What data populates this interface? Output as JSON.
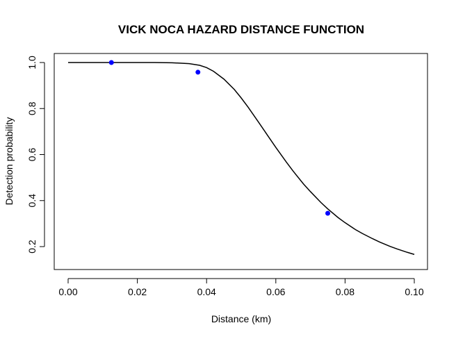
{
  "chart_data": {
    "type": "line",
    "title": "VICK NOCA HAZARD DISTANCE FUNCTION",
    "xlabel": "Distance (km)",
    "ylabel": "Detection probability",
    "xlim": [
      0.0,
      0.1
    ],
    "ylim": [
      0.13,
      1.0
    ],
    "x_ticks": [
      0.0,
      0.02,
      0.04,
      0.06,
      0.08,
      0.1
    ],
    "x_tick_labels": [
      "0.00",
      "0.02",
      "0.04",
      "0.06",
      "0.08",
      "0.10"
    ],
    "y_ticks": [
      0.2,
      0.4,
      0.6,
      0.8,
      1.0
    ],
    "y_tick_labels": [
      "0.2",
      "0.4",
      "0.6",
      "0.8",
      "1.0"
    ],
    "grid": false,
    "series": [
      {
        "kind": "line",
        "color": "#000000",
        "x": [
          0.0,
          0.005,
          0.01,
          0.015,
          0.02,
          0.025,
          0.03,
          0.035,
          0.038,
          0.04,
          0.042,
          0.045,
          0.048,
          0.05,
          0.052,
          0.055,
          0.058,
          0.06,
          0.063,
          0.065,
          0.068,
          0.07,
          0.073,
          0.075,
          0.078,
          0.08,
          0.083,
          0.085,
          0.088,
          0.09,
          0.093,
          0.095,
          0.098,
          0.1
        ],
        "y": [
          1.0,
          1.0,
          1.0,
          1.0,
          1.0,
          1.0,
          0.999,
          0.995,
          0.988,
          0.978,
          0.962,
          0.928,
          0.883,
          0.846,
          0.806,
          0.741,
          0.675,
          0.631,
          0.568,
          0.528,
          0.472,
          0.439,
          0.392,
          0.364,
          0.326,
          0.304,
          0.274,
          0.257,
          0.234,
          0.22,
          0.201,
          0.19,
          0.175,
          0.166
        ]
      },
      {
        "kind": "points",
        "color": "#0000ff",
        "x": [
          0.0125,
          0.0375,
          0.075
        ],
        "y": [
          1.0,
          0.958,
          0.345
        ]
      }
    ]
  }
}
